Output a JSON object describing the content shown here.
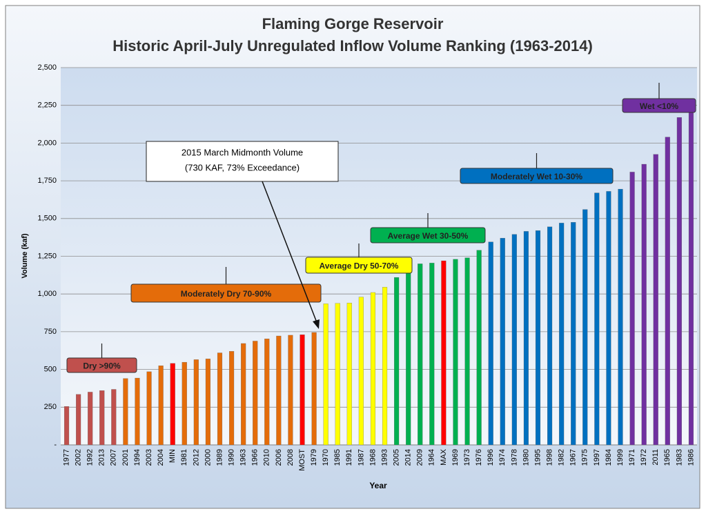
{
  "chart_data": {
    "type": "bar",
    "title": "Flaming Gorge Reservoir",
    "subtitle": "Historic April-July Unregulated Inflow Volume Ranking (1963-2014)",
    "x_label": "Year",
    "y_label": "Volume (kaf)",
    "categories": [
      "1977",
      "2002",
      "1992",
      "2013",
      "2007",
      "2001",
      "1994",
      "2003",
      "2004",
      "MIN",
      "1981",
      "2012",
      "2000",
      "1989",
      "1990",
      "1963",
      "1966",
      "2010",
      "2006",
      "2008",
      "MOST",
      "1979",
      "1970",
      "1985",
      "1991",
      "1987",
      "1968",
      "1993",
      "2005",
      "2014",
      "2009",
      "1964",
      "MAX",
      "1969",
      "1973",
      "1976",
      "1996",
      "1974",
      "1978",
      "1980",
      "1995",
      "1998",
      "1982",
      "1967",
      "1975",
      "1997",
      "1984",
      "1999",
      "1971",
      "1972",
      "2011",
      "1965",
      "1983",
      "1986"
    ],
    "values": [
      255,
      335,
      350,
      360,
      368,
      440,
      443,
      485,
      525,
      540,
      548,
      565,
      570,
      610,
      620,
      672,
      688,
      703,
      722,
      727,
      730,
      745,
      935,
      938,
      940,
      980,
      1010,
      1045,
      1110,
      1160,
      1200,
      1205,
      1220,
      1230,
      1240,
      1290,
      1345,
      1370,
      1395,
      1415,
      1420,
      1445,
      1470,
      1475,
      1560,
      1670,
      1680,
      1695,
      1808,
      1860,
      1925,
      2040,
      2170,
      2215
    ],
    "colors": [
      "#c0504d",
      "#c0504d",
      "#c0504d",
      "#c0504d",
      "#c0504d",
      "#e46c0a",
      "#e46c0a",
      "#e46c0a",
      "#e46c0a",
      "#ff0000",
      "#e46c0a",
      "#e46c0a",
      "#e46c0a",
      "#e46c0a",
      "#e46c0a",
      "#e46c0a",
      "#e46c0a",
      "#e46c0a",
      "#e46c0a",
      "#e46c0a",
      "#ff0000",
      "#e46c0a",
      "#ffff00",
      "#ffff00",
      "#ffff00",
      "#ffff00",
      "#ffff00",
      "#ffff00",
      "#00b050",
      "#00b050",
      "#00b050",
      "#00b050",
      "#ff0000",
      "#00b050",
      "#00b050",
      "#00b050",
      "#0070c0",
      "#0070c0",
      "#0070c0",
      "#0070c0",
      "#0070c0",
      "#0070c0",
      "#0070c0",
      "#0070c0",
      "#0070c0",
      "#0070c0",
      "#0070c0",
      "#0070c0",
      "#7030a0",
      "#7030a0",
      "#7030a0",
      "#7030a0",
      "#7030a0",
      "#7030a0"
    ],
    "ylim": [
      0,
      2500
    ],
    "yticks": [
      {
        "value": 0,
        "label": "-"
      },
      250,
      500,
      750,
      {
        "value": 1000,
        "label": "1,000"
      },
      {
        "value": 1250,
        "label": "1,250"
      },
      {
        "value": 1500,
        "label": "1,500"
      },
      {
        "value": 1750,
        "label": "1,750"
      },
      {
        "value": 2000,
        "label": "2,000"
      },
      {
        "value": 2250,
        "label": "2,250"
      },
      {
        "value": 2500,
        "label": "2,500"
      }
    ],
    "grid": true,
    "groups": [
      {
        "label": "Dry >90%",
        "color": "#c0504d"
      },
      {
        "label": "Moderately Dry 70-90%",
        "color": "#e46c0a"
      },
      {
        "label": "Average Dry 50-70%",
        "color": "#ffff00"
      },
      {
        "label": "Average Wet 30-50%",
        "color": "#00b050"
      },
      {
        "label": "Moderately Wet 10-30%",
        "color": "#0070c0"
      },
      {
        "label": "Wet <10%",
        "color": "#7030a0"
      }
    ],
    "callout": [
      "2015 March Midmonth Volume",
      "(730 KAF, 73% Exceedance)"
    ]
  }
}
